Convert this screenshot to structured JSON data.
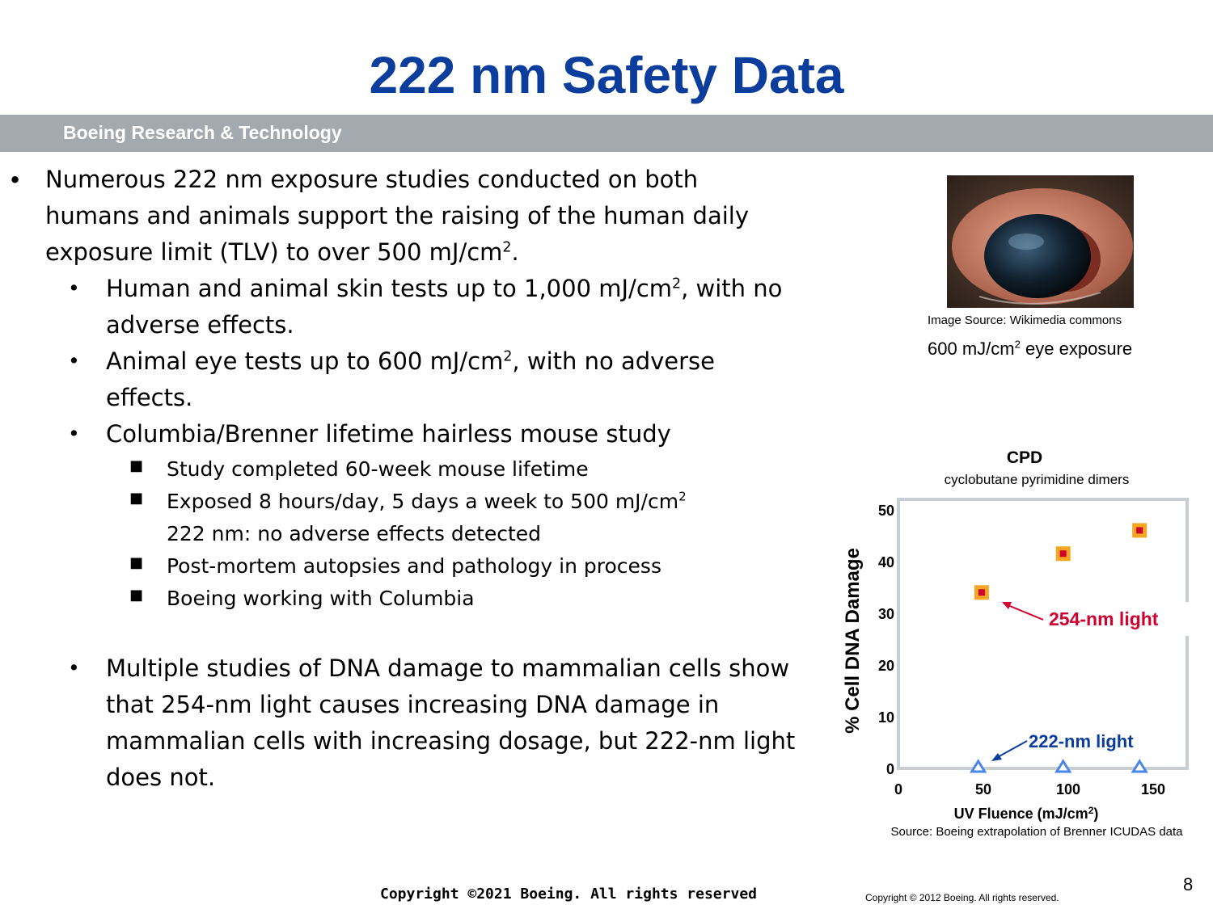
{
  "header": {
    "title": "222 nm Safety Data",
    "band_label": "Boeing Research & Technology"
  },
  "bullets": {
    "b1": {
      "pre": "Numerous 222 nm exposure studies conducted on both humans and animals support the raising of the human daily exposure limit (TLV) to over 500 mJ/cm",
      "sup": "2",
      "post": "."
    },
    "b1a": {
      "pre": "Human and animal skin tests up to 1,000 mJ/cm",
      "sup": "2",
      "post": ", with no adverse effects."
    },
    "b1b": {
      "pre": "Animal eye tests up to 600 mJ/cm",
      "sup": "2",
      "post": ", with no adverse effects."
    },
    "b1c": {
      "text": "Columbia/Brenner lifetime hairless mouse study"
    },
    "b1c1": {
      "text": "Study completed 60-week mouse lifetime"
    },
    "b1c2": {
      "pre": "Exposed 8 hours/day, 5 days a week to 500 mJ/cm",
      "sup": "2",
      "line2": "222 nm:  no adverse effects detected"
    },
    "b1c3": {
      "text": "Post-mortem autopsies and pathology in process"
    },
    "b1c4": {
      "text": "Boeing working with Columbia"
    },
    "b2": {
      "text": "Multiple studies of DNA damage to mammalian cells show that 254-nm light causes increasing DNA damage in mammalian cells with increasing dosage, but 222-nm light does not."
    }
  },
  "image": {
    "source": "Image Source: Wikimedia commons",
    "caption_pre": "600 mJ/cm",
    "caption_sup": "2",
    "caption_post": " eye exposure",
    "icon": "eye-photo"
  },
  "chart_data": {
    "type": "scatter",
    "title": "CPD",
    "subtitle": "cyclobutane pyrimidine dimers",
    "xlabel_pre": "UV Fluence (mJ/cm",
    "xlabel_sup": "2",
    "xlabel_post": ")",
    "ylabel": "% Cell DNA Damage",
    "xlim": [
      0,
      170
    ],
    "ylim": [
      0,
      52
    ],
    "x_ticks": [
      0,
      50,
      100,
      150
    ],
    "y_ticks": [
      0,
      10,
      20,
      30,
      40,
      50
    ],
    "grid": false,
    "series": [
      {
        "name": "254-nm light",
        "marker": "square",
        "color": "#d1002e",
        "fill": "#f5a623",
        "points": [
          [
            49,
            34
          ],
          [
            97,
            41.5
          ],
          [
            142,
            46
          ]
        ]
      },
      {
        "name": "222-nm light",
        "marker": "triangle",
        "color": "#0a3d9c",
        "fill": "#4a86e8",
        "points": [
          [
            47,
            0
          ],
          [
            97,
            0
          ],
          [
            142,
            0
          ]
        ]
      }
    ],
    "source": "Source: Boeing extrapolation of Brenner ICUDAS data"
  },
  "footer": {
    "copyright": "Copyright ©2021 Boeing. All rights reserved",
    "copyright_small": "Copyright © 2012 Boeing. All rights reserved.",
    "page_number": "8"
  }
}
